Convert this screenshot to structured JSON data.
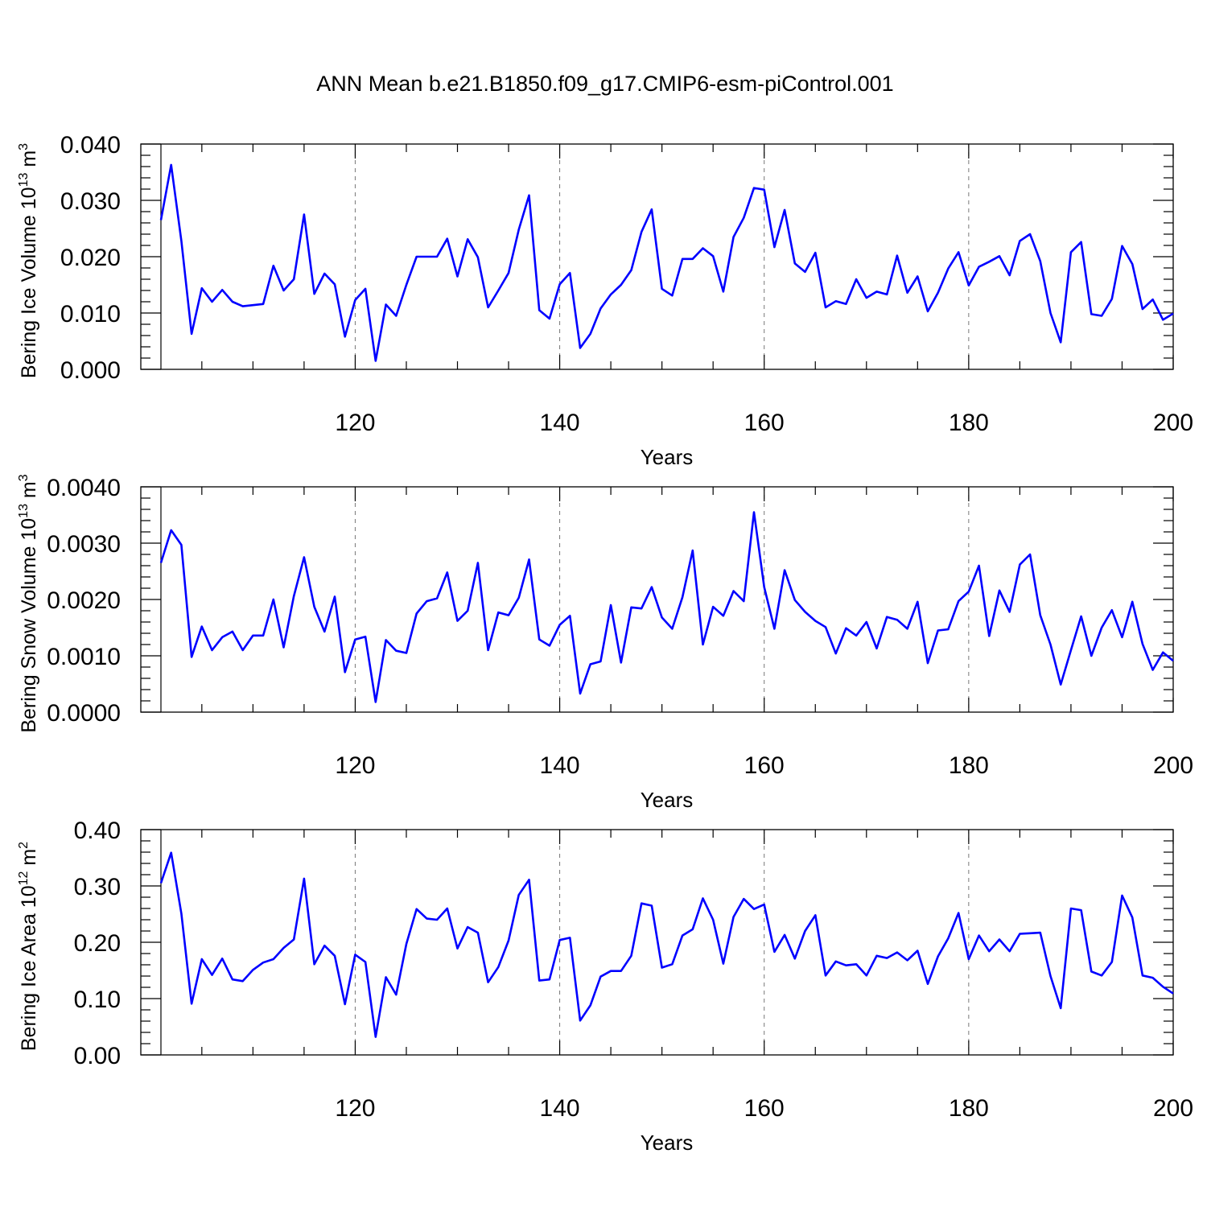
{
  "title": "ANN Mean b.e21.B1850.f09_g17.CMIP6-esm-piControl.001",
  "colors": {
    "line": "#0000ff",
    "axes": "#000000",
    "grid": "#777777"
  },
  "chart_data": [
    {
      "type": "line",
      "ylabel_main": "Bering Ice Volume 10",
      "ylabel_exp": "13",
      "ylabel_unit": " m",
      "ylabel_unit_exp": "3",
      "xlabel": "Years",
      "xlim": [
        101,
        200
      ],
      "ylim": [
        0,
        0.04
      ],
      "yticks": [
        0.0,
        0.01,
        0.02,
        0.03,
        0.04
      ],
      "ytick_labels": [
        "0.000",
        "0.010",
        "0.020",
        "0.030",
        "0.040"
      ],
      "xticks": [
        120,
        140,
        160,
        180,
        200
      ],
      "xtick_labels": [
        "120",
        "140",
        "160",
        "180",
        "200"
      ],
      "x_start": 101,
      "values": [
        0.0265,
        0.0363,
        0.0228,
        0.0063,
        0.0144,
        0.012,
        0.0141,
        0.012,
        0.0112,
        0.0114,
        0.0116,
        0.0184,
        0.014,
        0.016,
        0.0275,
        0.0134,
        0.017,
        0.0151,
        0.0058,
        0.0123,
        0.0143,
        0.0015,
        0.0115,
        0.0095,
        0.015,
        0.02,
        0.02,
        0.02,
        0.0232,
        0.0165,
        0.0231,
        0.0199,
        0.011,
        0.014,
        0.0171,
        0.0248,
        0.0309,
        0.0105,
        0.009,
        0.0151,
        0.0171,
        0.0038,
        0.0063,
        0.0108,
        0.0133,
        0.015,
        0.0176,
        0.0244,
        0.0284,
        0.0143,
        0.0131,
        0.0196,
        0.0196,
        0.0215,
        0.0201,
        0.0138,
        0.0235,
        0.0269,
        0.0322,
        0.0319,
        0.0217,
        0.0283,
        0.0188,
        0.0173,
        0.0207,
        0.011,
        0.0121,
        0.0116,
        0.016,
        0.0127,
        0.0138,
        0.0133,
        0.0202,
        0.0136,
        0.0165,
        0.0103,
        0.0136,
        0.0179,
        0.0208,
        0.0149,
        0.0182,
        0.0191,
        0.0201,
        0.0167,
        0.0228,
        0.024,
        0.0192,
        0.01,
        0.0048,
        0.0208,
        0.0226,
        0.0098,
        0.0095,
        0.0125,
        0.0219,
        0.0187,
        0.0107,
        0.0124,
        0.0088,
        0.0099
      ]
    },
    {
      "type": "line",
      "ylabel_main": "Bering Snow Volume 10",
      "ylabel_exp": "13",
      "ylabel_unit": " m",
      "ylabel_unit_exp": "3",
      "xlabel": "Years",
      "xlim": [
        101,
        200
      ],
      "ylim": [
        0,
        0.004
      ],
      "yticks": [
        0.0,
        0.001,
        0.002,
        0.003,
        0.004
      ],
      "ytick_labels": [
        "0.0000",
        "0.0010",
        "0.0020",
        "0.0030",
        "0.0040"
      ],
      "xticks": [
        120,
        140,
        160,
        180,
        200
      ],
      "xtick_labels": [
        "120",
        "140",
        "160",
        "180",
        "200"
      ],
      "x_start": 101,
      "values": [
        0.00265,
        0.00323,
        0.00297,
        0.00098,
        0.00152,
        0.0011,
        0.00133,
        0.00143,
        0.0011,
        0.00136,
        0.00136,
        0.002,
        0.00115,
        0.00206,
        0.00275,
        0.00187,
        0.00143,
        0.00205,
        0.00071,
        0.00129,
        0.00134,
        0.00018,
        0.00128,
        0.00109,
        0.00105,
        0.00175,
        0.00197,
        0.00202,
        0.00248,
        0.00162,
        0.0018,
        0.00265,
        0.0011,
        0.00177,
        0.00172,
        0.00203,
        0.00271,
        0.00129,
        0.00118,
        0.00155,
        0.00171,
        0.00033,
        0.00085,
        0.0009,
        0.0019,
        0.00088,
        0.00186,
        0.00184,
        0.00222,
        0.00168,
        0.00148,
        0.00204,
        0.00287,
        0.0012,
        0.00187,
        0.00171,
        0.00215,
        0.00197,
        0.00355,
        0.00222,
        0.00148,
        0.00252,
        0.00199,
        0.00178,
        0.00162,
        0.00151,
        0.00104,
        0.00149,
        0.00136,
        0.0016,
        0.00113,
        0.00169,
        0.00164,
        0.00148,
        0.00196,
        0.00087,
        0.00145,
        0.00147,
        0.00197,
        0.00214,
        0.0026,
        0.00135,
        0.00216,
        0.00178,
        0.00262,
        0.0028,
        0.00172,
        0.0012,
        0.00049,
        0.0011,
        0.0017,
        0.001,
        0.0015,
        0.00181,
        0.00133,
        0.00196,
        0.00121,
        0.00075,
        0.00106,
        0.00091
      ]
    },
    {
      "type": "line",
      "ylabel_main": "Bering Ice Area 10",
      "ylabel_exp": "12",
      "ylabel_unit": " m",
      "ylabel_unit_exp": "2",
      "xlabel": "Years",
      "xlim": [
        101,
        200
      ],
      "ylim": [
        0,
        0.4
      ],
      "yticks": [
        0.0,
        0.1,
        0.2,
        0.3,
        0.4
      ],
      "ytick_labels": [
        "0.00",
        "0.10",
        "0.20",
        "0.30",
        "0.40"
      ],
      "xticks": [
        120,
        140,
        160,
        180,
        200
      ],
      "xtick_labels": [
        "120",
        "140",
        "160",
        "180",
        "200"
      ],
      "x_start": 101,
      "values": [
        0.305,
        0.359,
        0.251,
        0.091,
        0.17,
        0.142,
        0.171,
        0.134,
        0.131,
        0.151,
        0.164,
        0.17,
        0.19,
        0.205,
        0.313,
        0.161,
        0.194,
        0.176,
        0.09,
        0.178,
        0.165,
        0.032,
        0.138,
        0.107,
        0.197,
        0.259,
        0.242,
        0.24,
        0.26,
        0.189,
        0.227,
        0.217,
        0.129,
        0.156,
        0.203,
        0.284,
        0.311,
        0.132,
        0.134,
        0.204,
        0.208,
        0.061,
        0.088,
        0.139,
        0.149,
        0.149,
        0.176,
        0.269,
        0.265,
        0.155,
        0.161,
        0.212,
        0.223,
        0.278,
        0.24,
        0.162,
        0.245,
        0.277,
        0.259,
        0.267,
        0.183,
        0.213,
        0.171,
        0.22,
        0.248,
        0.141,
        0.166,
        0.159,
        0.161,
        0.141,
        0.176,
        0.172,
        0.182,
        0.168,
        0.185,
        0.126,
        0.175,
        0.207,
        0.252,
        0.17,
        0.212,
        0.184,
        0.205,
        0.184,
        0.215,
        0.216,
        0.217,
        0.14,
        0.083,
        0.26,
        0.257,
        0.148,
        0.141,
        0.165,
        0.283,
        0.244,
        0.141,
        0.137,
        0.121,
        0.109
      ]
    }
  ]
}
